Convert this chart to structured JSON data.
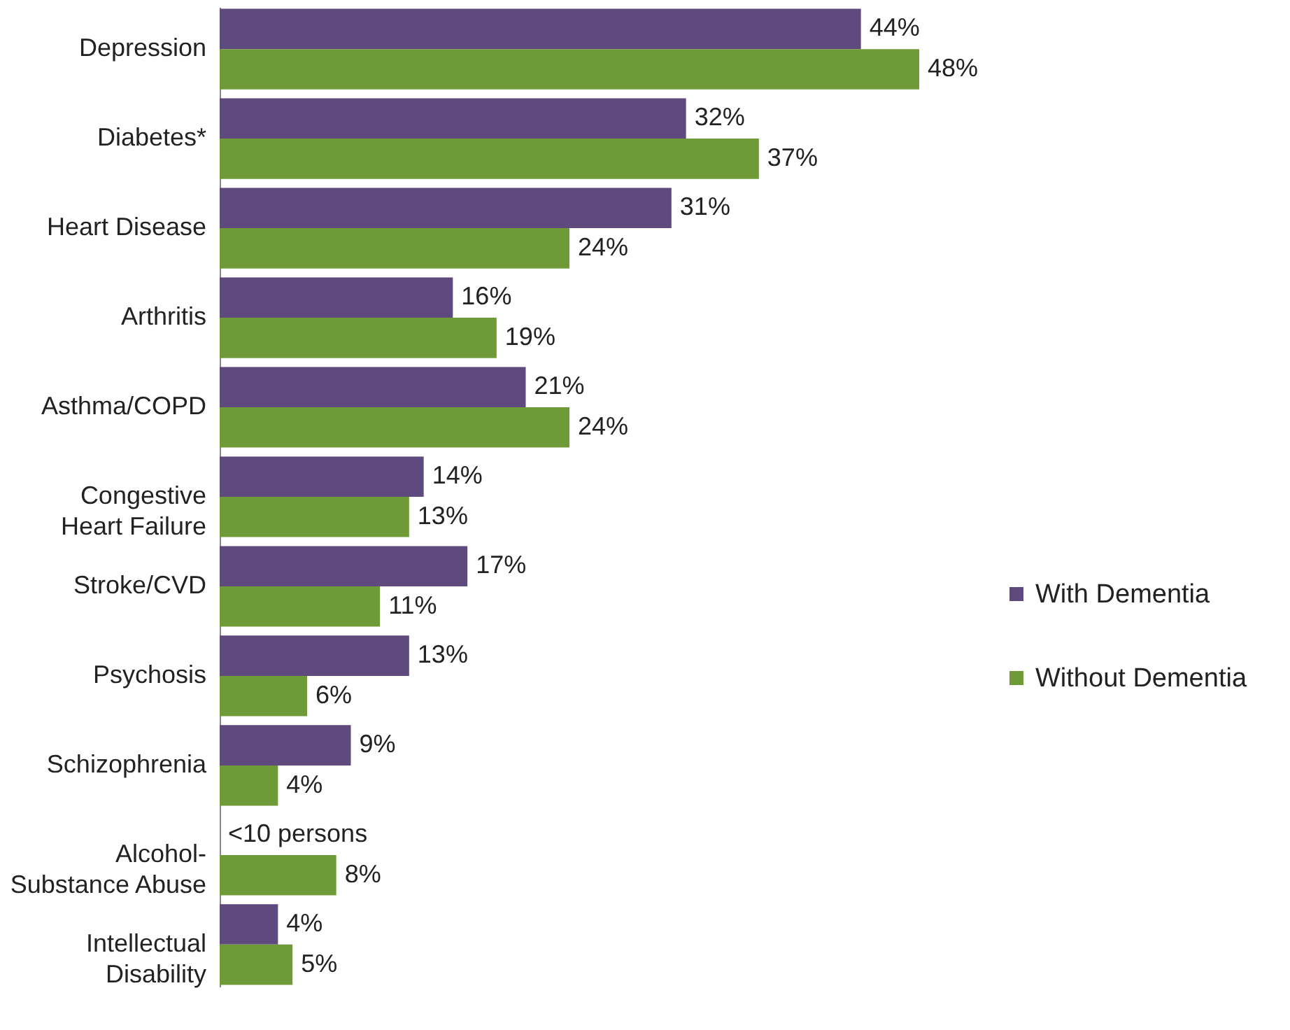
{
  "chart_data": {
    "type": "bar",
    "orientation": "horizontal",
    "categories": [
      "Depression",
      "Diabetes*",
      "Heart Disease",
      "Arthritis",
      "Asthma/COPD",
      "Congestive\nHeart Failure",
      "Stroke/CVD",
      "Psychosis",
      "Schizophrenia",
      "Alcohol-\nSubstance Abuse",
      "Intellectual\nDisability"
    ],
    "series": [
      {
        "name": "With Dementia",
        "color": "#5f4a7d",
        "values": [
          44,
          32,
          31,
          16,
          21,
          14,
          17,
          13,
          9,
          null,
          4
        ],
        "value_labels": [
          "44%",
          "32%",
          "31%",
          "16%",
          "21%",
          "14%",
          "17%",
          "13%",
          "9%",
          "<10 persons",
          "4%"
        ]
      },
      {
        "name": "Without Dementia",
        "color": "#6e9a37",
        "values": [
          48,
          37,
          24,
          19,
          24,
          13,
          11,
          6,
          4,
          8,
          5
        ],
        "value_labels": [
          "48%",
          "37%",
          "24%",
          "19%",
          "24%",
          "13%",
          "11%",
          "6%",
          "4%",
          "8%",
          "5%"
        ]
      }
    ],
    "legend": "right",
    "grid": false
  }
}
